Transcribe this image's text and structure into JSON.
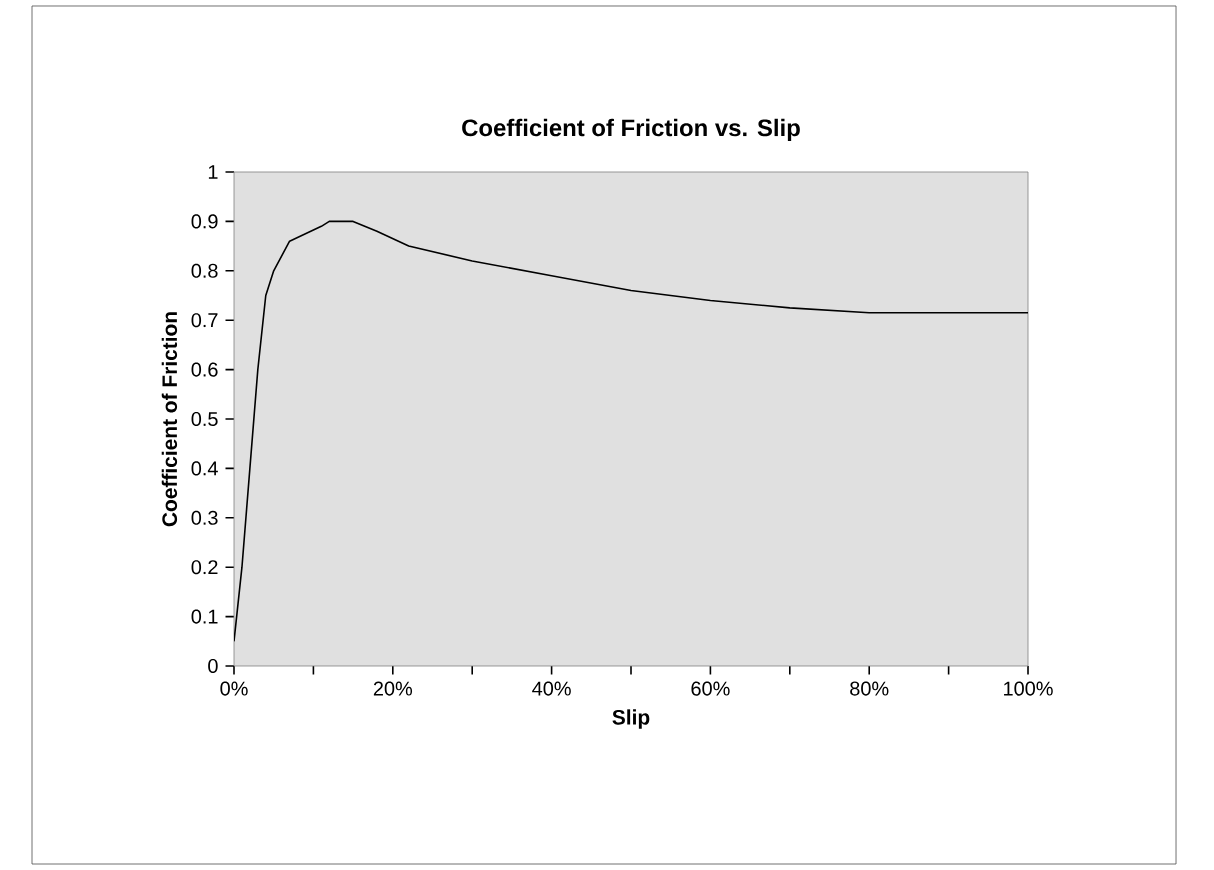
{
  "chart_data": {
    "type": "line",
    "title": "Coefficient of Friction vs. Slip",
    "xlabel": "Slip",
    "ylabel": "Coefficient of Friction",
    "x": [
      0,
      1,
      2,
      3,
      4,
      5,
      7,
      9,
      11,
      12,
      15,
      18,
      22,
      30,
      40,
      50,
      60,
      70,
      80,
      100
    ],
    "series": [
      {
        "color": "#000000",
        "values": [
          0.05,
          0.2,
          0.4,
          0.6,
          0.75,
          0.8,
          0.86,
          0.875,
          0.89,
          0.9,
          0.9,
          0.88,
          0.85,
          0.82,
          0.79,
          0.76,
          0.74,
          0.725,
          0.715,
          0.715
        ]
      }
    ],
    "xlim": [
      0,
      100
    ],
    "ylim": [
      0,
      1
    ],
    "xticks": [
      {
        "value": 0,
        "label": "0%"
      },
      {
        "value": 10,
        "label": null
      },
      {
        "value": 20,
        "label": "20%"
      },
      {
        "value": 30,
        "label": null
      },
      {
        "value": 40,
        "label": "40%"
      },
      {
        "value": 50,
        "label": null
      },
      {
        "value": 60,
        "label": "60%"
      },
      {
        "value": 70,
        "label": null
      },
      {
        "value": 80,
        "label": "80%"
      },
      {
        "value": 90,
        "label": null
      },
      {
        "value": 100,
        "label": "100%"
      }
    ],
    "yticks": [
      0,
      0.1,
      0.2,
      0.3,
      0.4,
      0.5,
      0.6,
      0.7,
      0.8,
      0.9,
      1
    ],
    "marker": "none",
    "line_style": "solid",
    "grid": false
  }
}
